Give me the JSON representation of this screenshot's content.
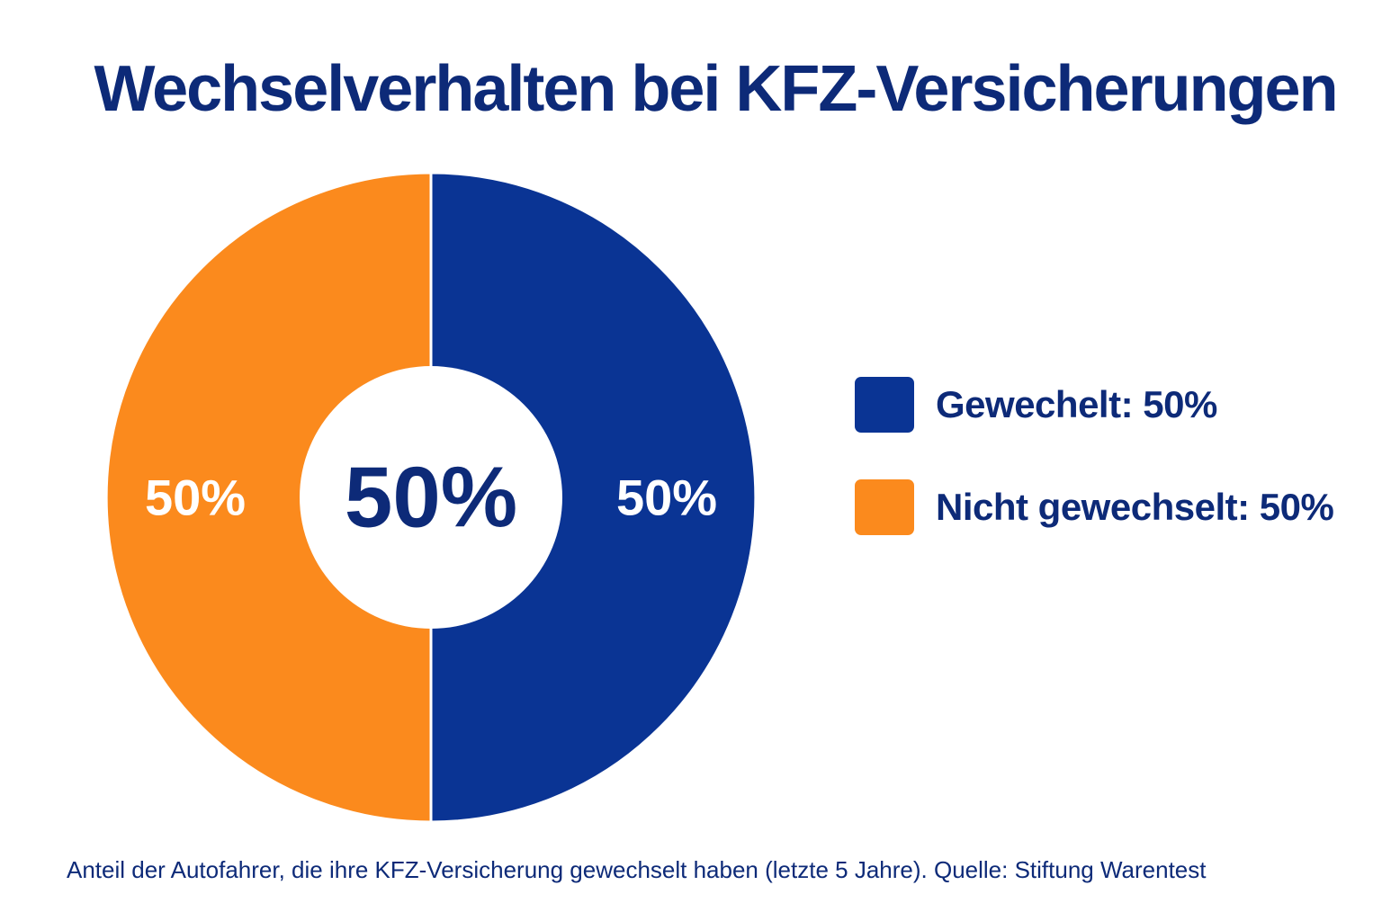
{
  "chart_data": {
    "type": "pie",
    "variant": "donut",
    "title": "Wechselverhalten bei KFZ-Versicherungen",
    "center_label": "50%",
    "slices": [
      {
        "name": "Gewechelt",
        "value": 50,
        "label": "50%",
        "color": "#0a3494"
      },
      {
        "name": "Nicht gewechselt",
        "value": 50,
        "label": "50%",
        "color": "#fb8a1d"
      }
    ],
    "legend": {
      "placement": "right",
      "entries": [
        "Gewechelt: 50%",
        "Nicht gewechselt: 50%"
      ]
    },
    "caption": "Anteil der Autofahrer, die ihre KFZ-Versicherung gewechselt haben (letzte 5 Jahre). Quelle: Stiftung Warentest"
  }
}
